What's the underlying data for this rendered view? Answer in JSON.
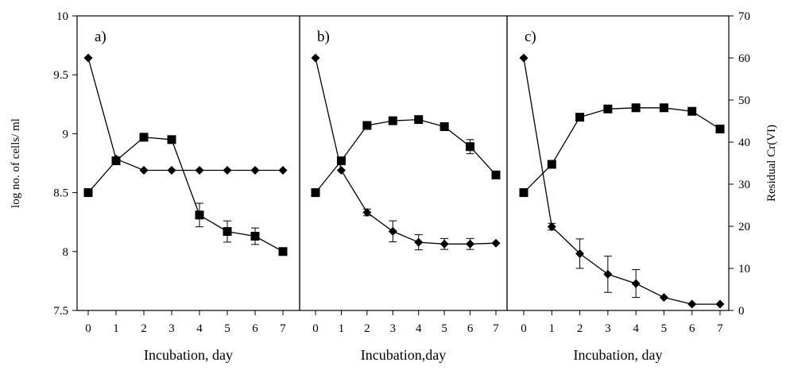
{
  "chart_data": {
    "type": "line",
    "left_axis": {
      "label": "log no. of cells/ ml",
      "range": [
        7.5,
        10
      ],
      "ticks": [
        "7.5",
        "8",
        "8.5",
        "9",
        "9.5",
        "10"
      ],
      "tick_values": [
        7.5,
        8,
        8.5,
        9,
        9.5,
        10
      ]
    },
    "right_axis": {
      "label": "Residual Cr(VI)",
      "range": [
        0,
        70
      ],
      "ticks": [
        "0",
        "10",
        "20",
        "30",
        "40",
        "50",
        "60",
        "70"
      ],
      "tick_values": [
        0,
        10,
        20,
        30,
        40,
        50,
        60,
        70
      ]
    },
    "x_ticks": [
      "0",
      "1",
      "2",
      "3",
      "4",
      "5",
      "6",
      "7"
    ],
    "x_values": [
      0,
      1,
      2,
      3,
      4,
      5,
      6,
      7
    ],
    "panels": [
      {
        "label": "a)",
        "xlabel": "Incubation, day",
        "series": [
          {
            "marker": "square",
            "axis": "left",
            "values": [
              8.5,
              8.77,
              8.97,
              8.95,
              8.31,
              8.17,
              8.13,
              8.0
            ],
            "errors": [
              0,
              0.02,
              0.02,
              0.02,
              0.1,
              0.09,
              0.07,
              0.02
            ]
          },
          {
            "marker": "diamond",
            "axis": "right",
            "values": [
              60.0,
              36.0,
              33.3,
              33.3,
              33.3,
              33.3,
              33.3,
              33.3
            ],
            "errors": [
              0,
              0,
              0,
              0,
              0,
              0,
              0,
              0
            ]
          }
        ]
      },
      {
        "label": "b)",
        "xlabel": "Incubation,day",
        "series": [
          {
            "marker": "square",
            "axis": "left",
            "values": [
              8.5,
              8.77,
              9.07,
              9.11,
              9.12,
              9.06,
              8.89,
              8.65
            ],
            "errors": [
              0,
              0.02,
              0.02,
              0.02,
              0.02,
              0.02,
              0.06,
              0.02
            ]
          },
          {
            "marker": "diamond",
            "axis": "right",
            "values": [
              60.0,
              33.3,
              23.3,
              18.8,
              16.2,
              15.8,
              15.8,
              16.0
            ],
            "errors": [
              0,
              0,
              0.8,
              2.5,
              1.8,
              1.3,
              1.3,
              0
            ]
          }
        ]
      },
      {
        "label": "c)",
        "xlabel": "Incubation, day",
        "series": [
          {
            "marker": "square",
            "axis": "left",
            "values": [
              8.5,
              8.74,
              9.14,
              9.21,
              9.22,
              9.22,
              9.19,
              9.04
            ],
            "errors": [
              0,
              0.02,
              0.02,
              0.02,
              0.02,
              0.02,
              0.02,
              0.02
            ]
          },
          {
            "marker": "diamond",
            "axis": "right",
            "values": [
              60.0,
              19.9,
              13.5,
              8.6,
              6.4,
              3.1,
              1.5,
              1.5
            ],
            "errors": [
              0,
              0.8,
              3.5,
              4.3,
              3.3,
              0,
              0,
              0
            ]
          }
        ]
      }
    ]
  }
}
